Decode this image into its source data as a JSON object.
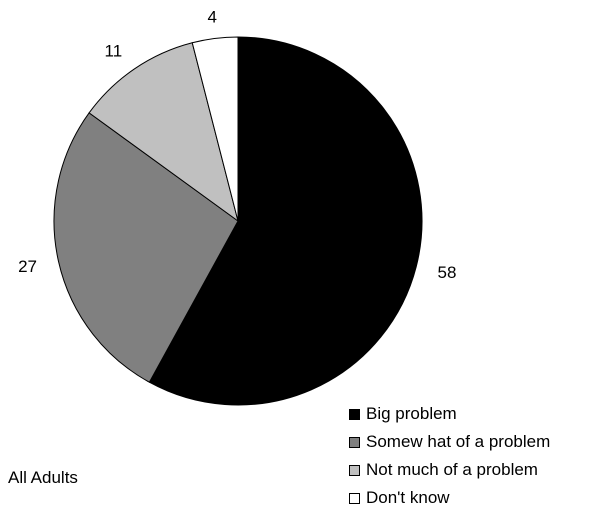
{
  "chart_data": {
    "type": "pie",
    "title": "",
    "slices": [
      {
        "label": "Big problem",
        "value": 58,
        "color": "#000000"
      },
      {
        "label": "Somew hat of a problem",
        "value": 27,
        "color": "#808080"
      },
      {
        "label": "Not much of a problem",
        "value": 11,
        "color": "#c0c0c0"
      },
      {
        "label": "Don't know",
        "value": 4,
        "color": "#ffffff"
      }
    ],
    "start": "top",
    "direction": "clockwise",
    "legend_placement": "bottom-right"
  },
  "group_label": "All Adults"
}
